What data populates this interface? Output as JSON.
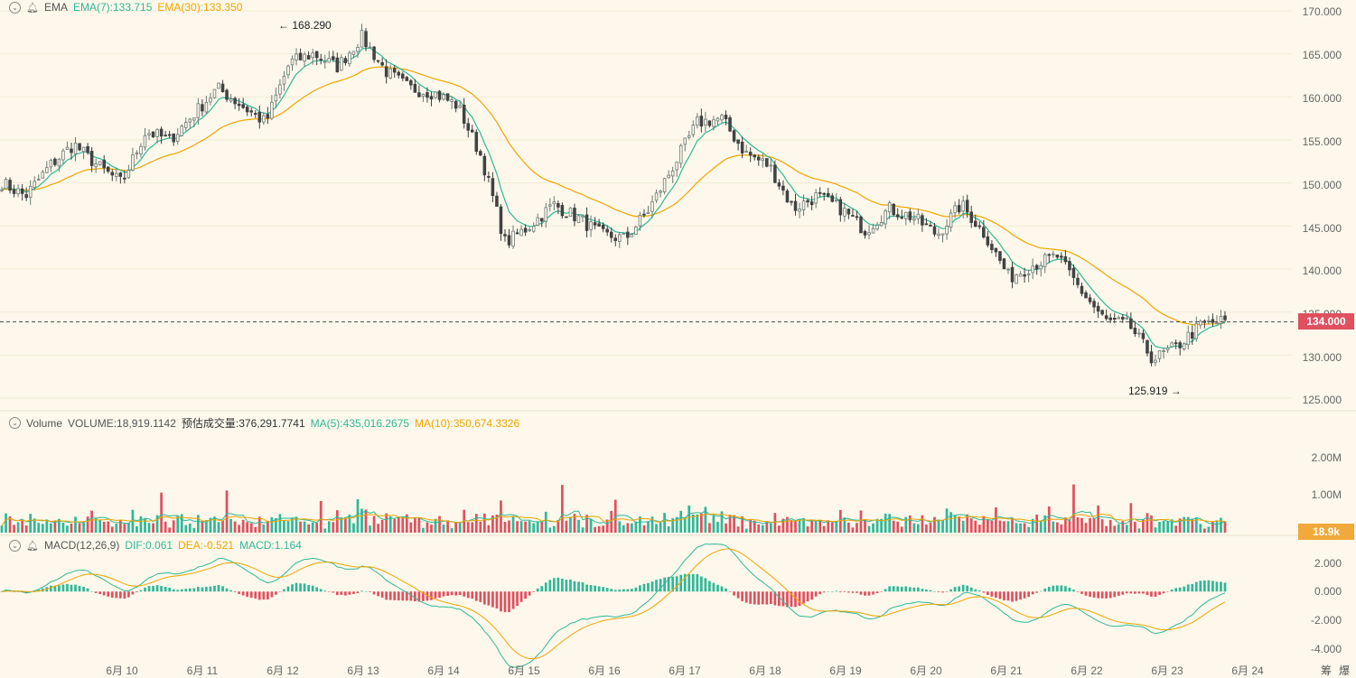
{
  "price_panel": {
    "indicator": "EMA",
    "ema7_label": "EMA(7):133.715",
    "ema30_label": "EMA(30):133.350",
    "y_ticks": [
      "170.000",
      "165.000",
      "160.000",
      "155.000",
      "150.000",
      "145.000",
      "140.000",
      "135.000",
      "130.000",
      "125.000"
    ],
    "current_price": "134.000",
    "high_label": "168.290",
    "low_label": "125.919"
  },
  "volume_panel": {
    "indicator": "Volume",
    "volume_label": "VOLUME:18,919.1142",
    "est_label": "预估成交量:376,291.7741",
    "ma5_label": "MA(5):435,016.2675",
    "ma10_label": "MA(10):350,674.3326",
    "y_ticks": [
      "2.00M",
      "1.00M"
    ],
    "current_volume": "18.9k"
  },
  "macd_panel": {
    "indicator": "MACD(12,26,9)",
    "dif_label": "DIF:0.061",
    "dea_label": "DEA:-0.521",
    "macd_label": "MACD:1.164",
    "y_ticks": [
      "2.000",
      "0.000",
      "-2.000",
      "-4.000"
    ]
  },
  "x_ticks": [
    "6月 10",
    "6月 11",
    "6月 12",
    "6月 13",
    "6月 14",
    "6月 15",
    "6月 16",
    "6月 17",
    "6月 18",
    "6月 19",
    "6月 20",
    "6月 21",
    "6月 22",
    "6月 23",
    "6月 24"
  ],
  "corner_icons": [
    "筹",
    "爆"
  ],
  "colors": {
    "up": "#2fb89a",
    "down": "#e0505f",
    "ema7": "#2fb89a",
    "ema30": "#f0a500",
    "bg": "#fdf8eb",
    "price_tag": "#e0505f",
    "vol_tag": "#f0a93a"
  },
  "chart_data": {
    "type": "candlestick",
    "price_ylim": [
      125,
      170
    ],
    "x_dates": [
      "6月 10",
      "6月 11",
      "6月 12",
      "6月 13",
      "6月 14",
      "6月 15",
      "6月 16",
      "6月 17",
      "6月 18",
      "6月 19",
      "6月 20",
      "6月 21",
      "6月 22",
      "6月 23",
      "6月 24"
    ],
    "close_path": [
      150.0,
      148.5,
      152.0,
      154.5,
      152.0,
      150.0,
      156.0,
      155.0,
      158.0,
      161.0,
      159.0,
      157.0,
      164.0,
      165.0,
      163.5,
      167.0,
      163.0,
      161.0,
      160.5,
      159.0,
      153.0,
      143.0,
      145.0,
      147.5,
      146.0,
      144.0,
      143.5,
      147.0,
      152.0,
      157.0,
      157.5,
      153.5,
      152.0,
      147.0,
      148.5,
      147.0,
      144.5,
      147.0,
      146.0,
      144.0,
      147.5,
      144.0,
      139.0,
      140.5,
      141.5,
      137.5,
      134.0,
      133.5,
      129.5,
      131.0,
      133.5,
      134.0
    ],
    "annotations": {
      "high": 168.29,
      "low": 125.919,
      "current": 134.0
    },
    "ema7_last": 133.715,
    "ema30_last": 133.35,
    "volume_ylim": [
      0,
      2800000
    ],
    "volume_last": 18919.1142,
    "macd": {
      "dif": 0.061,
      "dea": -0.521,
      "macd": 1.164,
      "ylim": [
        -4.6,
        3.0
      ]
    }
  }
}
